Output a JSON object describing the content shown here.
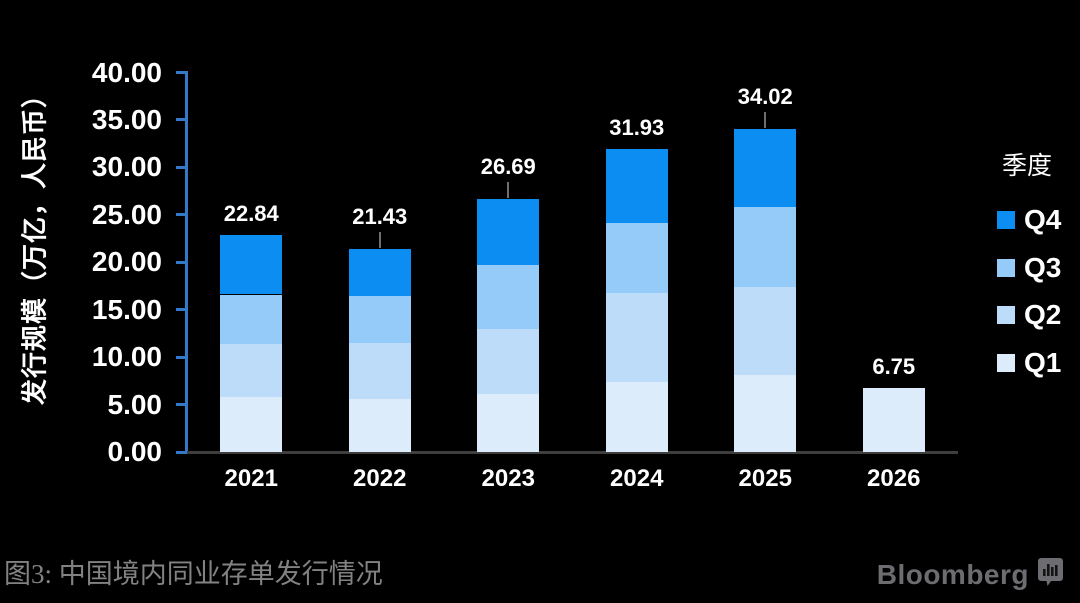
{
  "chart_data": {
    "type": "bar",
    "stacked": true,
    "categories": [
      "2021",
      "2022",
      "2023",
      "2024",
      "2025",
      "2026"
    ],
    "series": [
      {
        "name": "Q1",
        "values": [
          5.75,
          5.6,
          6.1,
          7.4,
          8.16,
          6.75
        ]
      },
      {
        "name": "Q2",
        "values": [
          5.65,
          5.9,
          6.9,
          9.4,
          9.24,
          0
        ]
      },
      {
        "name": "Q3",
        "values": [
          5.2,
          4.95,
          6.7,
          7.3,
          8.4,
          0
        ]
      },
      {
        "name": "Q4",
        "values": [
          6.24,
          4.98,
          6.99,
          7.83,
          8.22,
          0
        ]
      }
    ],
    "series_colors": {
      "Q1": "#ddecfa",
      "Q2": "#bddcfa",
      "Q3": "#94cbf8",
      "Q4": "#0b8df2"
    },
    "totals": [
      "22.84",
      "21.43",
      "26.69",
      "31.93",
      "34.02",
      "6.75"
    ],
    "label_connector_categories": [
      "2022",
      "2023",
      "2025"
    ],
    "ylabel": "发行规模（万亿，人民币）",
    "ylim": [
      0,
      40
    ],
    "ytick_step": 5,
    "ytick_labels": [
      "40.00",
      "35.00",
      "30.00",
      "25.00",
      "20.00",
      "15.00",
      "10.00",
      "5.00",
      "0.00"
    ],
    "grid": false,
    "legend": {
      "title": "季度",
      "position": "right",
      "items": [
        {
          "label": "Q4",
          "color": "#0b8df2"
        },
        {
          "label": "Q3",
          "color": "#94cbf8"
        },
        {
          "label": "Q2",
          "color": "#bddcfa"
        },
        {
          "label": "Q1",
          "color": "#ddecfa"
        }
      ]
    },
    "axis_color": "#3478c8",
    "baseline_color": "#3e3e3e"
  },
  "caption": "图3: 中国境内同业存单发行情况",
  "branding": {
    "logo_text": "Bloomberg",
    "logo_color": "#6d6d71"
  }
}
